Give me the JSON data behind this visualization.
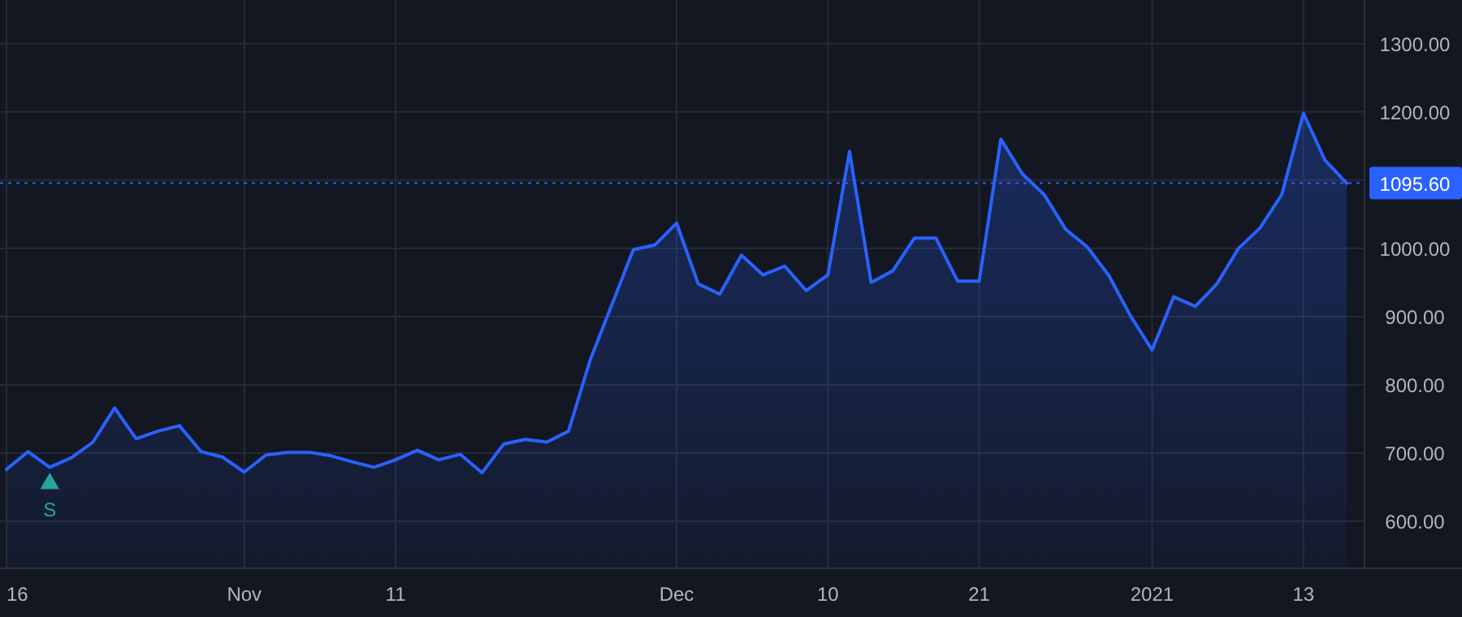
{
  "chart_data": {
    "type": "area",
    "categories": [
      "16",
      null,
      null,
      null,
      null,
      null,
      null,
      null,
      null,
      null,
      null,
      "Nov",
      null,
      null,
      null,
      null,
      null,
      null,
      "11",
      null,
      null,
      null,
      null,
      null,
      null,
      null,
      null,
      null,
      null,
      null,
      null,
      "Dec",
      null,
      null,
      null,
      null,
      null,
      null,
      "10",
      null,
      null,
      null,
      null,
      null,
      null,
      "21",
      null,
      null,
      null,
      null,
      null,
      null,
      null,
      "2021",
      null,
      null,
      null,
      null,
      null,
      null,
      "13",
      null,
      null
    ],
    "series": [
      {
        "color": "#2962ff",
        "values": [
          676,
          702,
          679,
          693,
          716,
          766,
          721,
          732,
          740,
          702,
          694,
          672,
          697,
          701,
          701,
          696,
          687,
          679,
          690,
          704,
          690,
          698,
          671,
          713,
          720,
          716,
          732,
          836,
          917,
          998,
          1005,
          1037,
          948,
          933,
          990,
          961,
          974,
          938,
          961,
          1142,
          950,
          967,
          1015,
          1015,
          952,
          952,
          1160,
          1109,
          1079,
          1028,
          1002,
          960,
          901,
          851,
          929,
          915,
          948,
          1000,
          1030,
          1079,
          1198,
          1129,
          1095.6
        ]
      },
      {
        "type": "scatter",
        "marker": "triangle",
        "color": "#26a69a",
        "values": [
          null,
          null,
          655,
          null,
          null,
          null,
          null,
          null,
          null,
          null,
          null,
          null,
          null,
          null,
          null,
          null,
          null,
          null,
          null,
          null,
          null,
          null,
          null,
          null,
          null,
          null,
          null,
          null,
          null,
          null,
          null,
          null,
          null,
          null,
          null,
          null,
          null,
          null,
          null,
          null,
          null,
          null,
          null,
          null,
          null,
          null,
          null,
          null,
          null,
          null,
          null,
          null,
          null,
          null,
          null,
          null,
          null,
          null,
          null,
          null,
          null,
          null,
          null
        ]
      }
    ],
    "annotations": [
      "S"
    ],
    "ref_lines": [
      {
        "axis": "y",
        "value": 1095.6,
        "label": "1095.60",
        "color": "#2962ff",
        "line_style": "dotted"
      }
    ],
    "ylim": [
      531,
      1364
    ],
    "yticks": [
      {
        "value": 600,
        "label": "600.00"
      },
      {
        "value": 700,
        "label": "700.00"
      },
      {
        "value": 800,
        "label": "800.00"
      },
      {
        "value": 900,
        "label": "900.00"
      },
      {
        "value": 1000,
        "label": "1000.00"
      },
      {
        "value": 1100,
        "label": null
      },
      {
        "value": 1200,
        "label": "1200.00"
      },
      {
        "value": 1300,
        "label": "1300.00"
      }
    ],
    "grid": true
  }
}
